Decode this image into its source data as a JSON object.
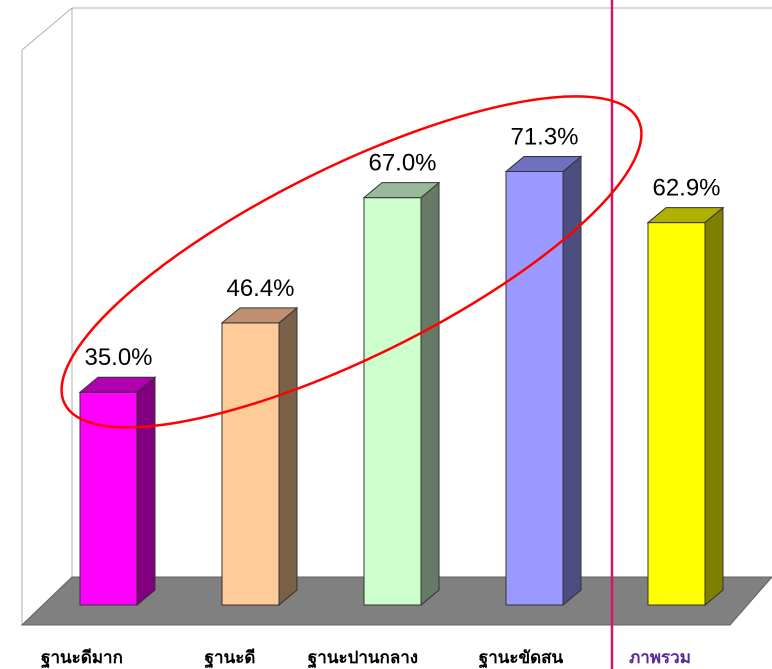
{
  "chart_data": {
    "type": "bar",
    "title": "",
    "xlabel": "",
    "ylabel": "",
    "ylim": [
      0,
      80
    ],
    "grid": false,
    "categories": [
      "ฐานะดีมาก",
      "ฐานะดี",
      "ฐานะปานกลาง",
      "ฐานะขัดสน",
      "ภาพรวม"
    ],
    "values": [
      35.0,
      46.4,
      67.0,
      71.3,
      62.9
    ],
    "value_labels": [
      "35.0%",
      "46.4%",
      "67.0%",
      "71.3%",
      "62.9%"
    ],
    "colors": [
      "#ff00ff",
      "#ffcc99",
      "#ccffcc",
      "#9999ff",
      "#ffff00"
    ],
    "side_colors": [
      "#800080",
      "#7a6046",
      "#667a66",
      "#4d4d80",
      "#808000"
    ],
    "top_colors": [
      "#b000b0",
      "#c09070",
      "#9ab89a",
      "#7070c0",
      "#b0b000"
    ],
    "annotations": {
      "ellipse_around": [
        "ฐานะดีมาก",
        "ฐานะดี",
        "ฐานะปานกลาง",
        "ฐานะขัดสน"
      ],
      "ellipse_color": "#ff0000",
      "separator_before": "ภาพรวม",
      "separator_color": "#e0106a"
    },
    "floor_color": "#808080",
    "overall_label_color": "#5a2a9a"
  }
}
